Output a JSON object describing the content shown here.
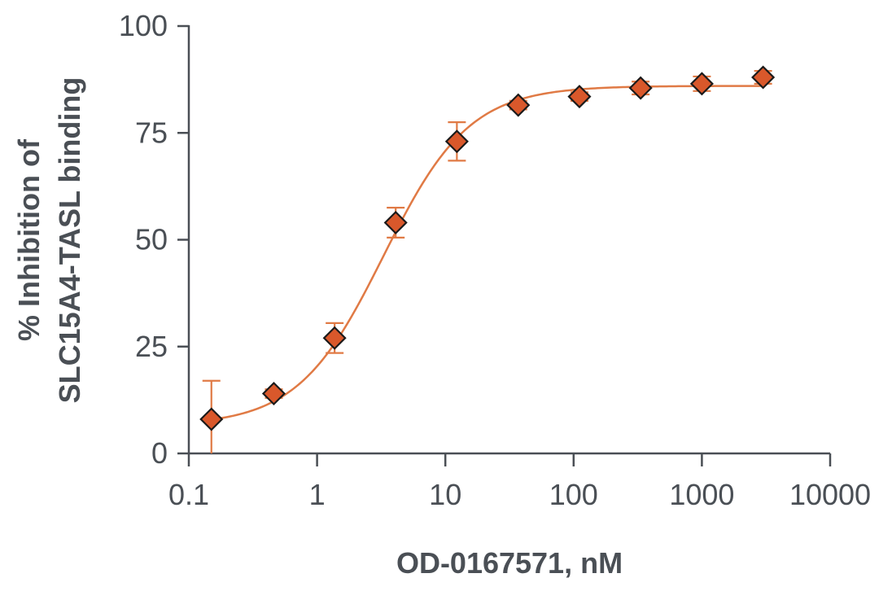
{
  "chart_data": {
    "type": "scatter",
    "title": "",
    "xlabel": "OD-0167571, nM",
    "ylabel_lines": [
      "% Inhibition of",
      "SLC15A4-TASL binding"
    ],
    "x_scale": "log",
    "xlim": [
      0.1,
      10000
    ],
    "ylim": [
      0,
      100
    ],
    "x_ticks": [
      0.1,
      1,
      10,
      100,
      1000,
      10000
    ],
    "x_tick_labels": [
      "0.1",
      "1",
      "10",
      "100",
      "1000",
      "10000"
    ],
    "y_ticks": [
      0,
      25,
      50,
      75,
      100
    ],
    "y_tick_labels": [
      "0",
      "25",
      "50",
      "75",
      "100"
    ],
    "grid": false,
    "series": [
      {
        "marker": "diamond",
        "color": "#d9582b",
        "line_color": "#e07a45",
        "points": [
          {
            "x": 0.15,
            "y": 8,
            "err_low": 0,
            "err_high": 17
          },
          {
            "x": 0.46,
            "y": 14,
            "err_low": 13,
            "err_high": 15
          },
          {
            "x": 1.37,
            "y": 27,
            "err_low": 23.5,
            "err_high": 30.5
          },
          {
            "x": 4.1,
            "y": 54,
            "err_low": 50.5,
            "err_high": 57.5
          },
          {
            "x": 12.3,
            "y": 73,
            "err_low": 68.5,
            "err_high": 77.5
          },
          {
            "x": 37,
            "y": 81.5,
            "err_low": 80.5,
            "err_high": 82.5
          },
          {
            "x": 111,
            "y": 83.5,
            "err_low": 82.5,
            "err_high": 84.5
          },
          {
            "x": 333,
            "y": 85.5,
            "err_low": 84,
            "err_high": 87
          },
          {
            "x": 1000,
            "y": 86.5,
            "err_low": 84.8,
            "err_high": 88.2
          },
          {
            "x": 3000,
            "y": 88,
            "err_low": 86.5,
            "err_high": 89.5
          }
        ],
        "fit": {
          "model": "four-parameter logistic",
          "bottom": 6.5,
          "top": 86,
          "ec50": 3.3,
          "hill": 1.3
        }
      }
    ]
  }
}
